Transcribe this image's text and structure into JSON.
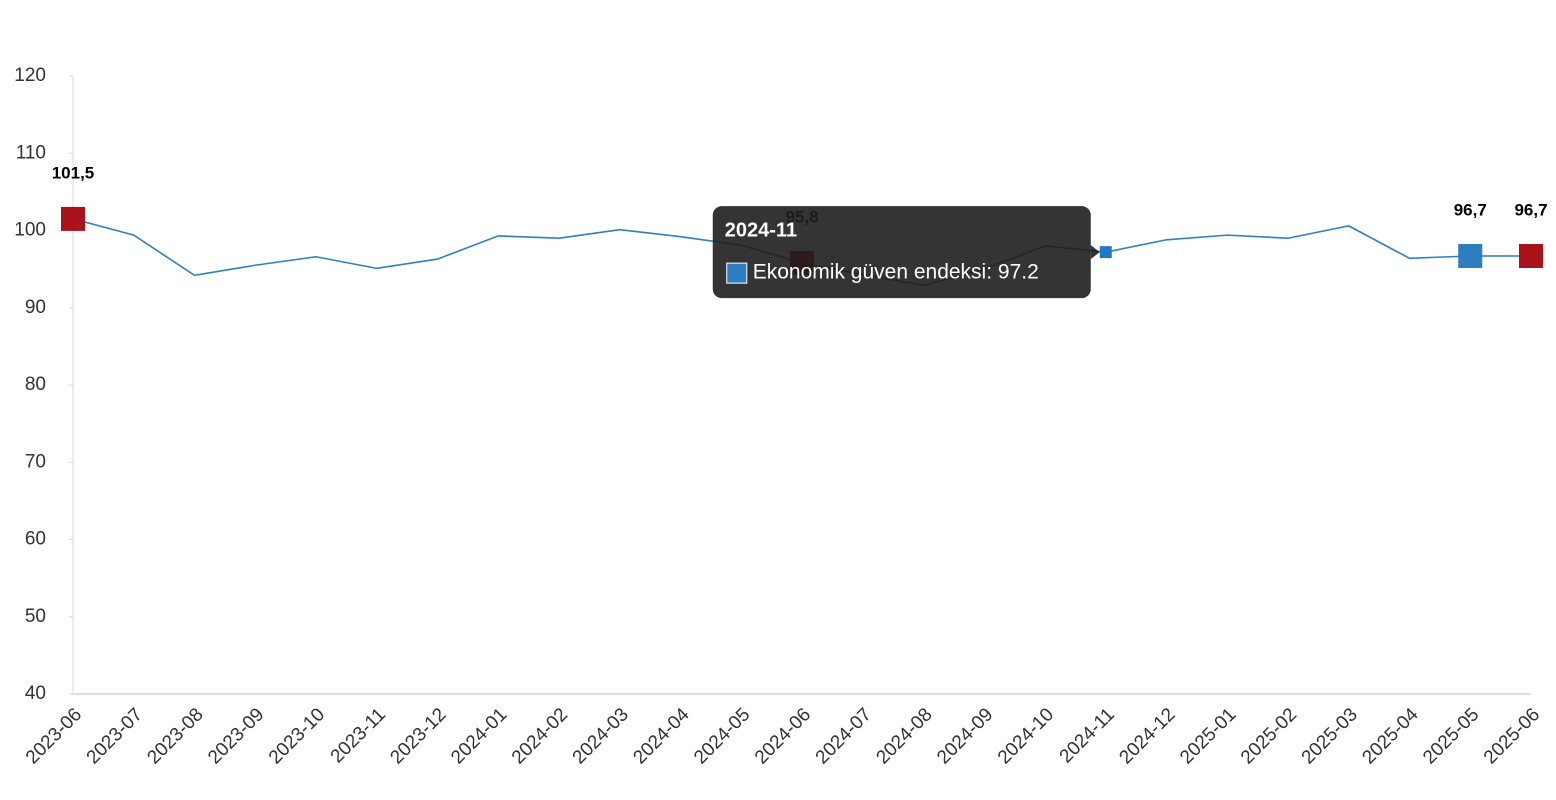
{
  "chart_data": {
    "type": "line",
    "categories": [
      "2023-06",
      "2023-07",
      "2023-08",
      "2023-09",
      "2023-10",
      "2023-11",
      "2023-12",
      "2024-01",
      "2024-02",
      "2024-03",
      "2024-04",
      "2024-05",
      "2024-06",
      "2024-07",
      "2024-08",
      "2024-09",
      "2024-10",
      "2024-11",
      "2024-12",
      "2025-01",
      "2025-02",
      "2025-03",
      "2025-04",
      "2025-05",
      "2025-06"
    ],
    "values": [
      101.5,
      99.4,
      94.2,
      95.5,
      96.6,
      95.1,
      96.3,
      99.3,
      99.0,
      100.1,
      99.2,
      98.1,
      95.8,
      94.3,
      92.9,
      95.0,
      98.0,
      97.2,
      98.8,
      99.4,
      99.0,
      100.6,
      96.4,
      96.7,
      96.7
    ],
    "value_labels": [
      "101,5",
      null,
      null,
      null,
      null,
      null,
      null,
      null,
      null,
      null,
      null,
      null,
      "95,8",
      null,
      null,
      null,
      null,
      null,
      null,
      null,
      null,
      null,
      null,
      "96,7",
      "96,7"
    ],
    "color": "#2f7fc1",
    "point_colors": [
      "#a8131a",
      null,
      null,
      null,
      null,
      null,
      null,
      null,
      null,
      null,
      null,
      null,
      "#a8131a",
      null,
      null,
      null,
      null,
      "#1f78c8",
      null,
      null,
      null,
      null,
      null,
      "#2e7dc0",
      "#a8131a"
    ],
    "ylim": [
      40,
      120
    ],
    "yticks": [
      40,
      50,
      60,
      70,
      80,
      90,
      100,
      110,
      120
    ],
    "tooltip": {
      "index": 17,
      "title": "2024-11",
      "label": "Ekonomik güven endeksi: 97.2",
      "swatch": "#2e7dc0"
    }
  }
}
